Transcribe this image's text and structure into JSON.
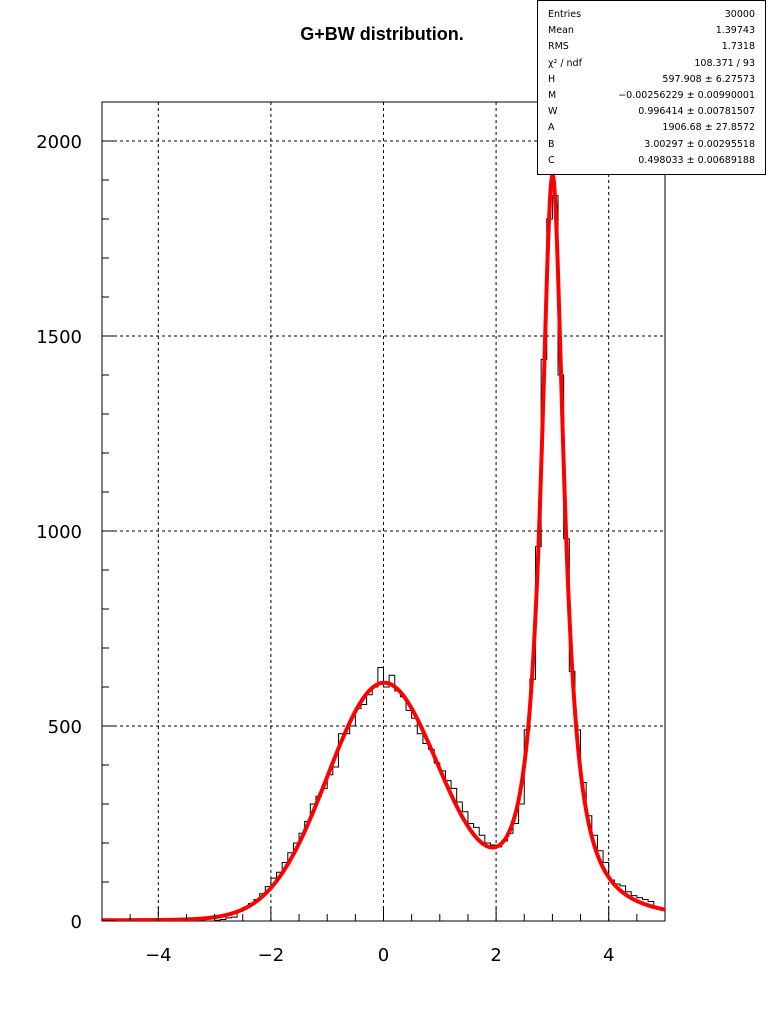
{
  "title": "G+BW distribution.",
  "stats": [
    {
      "key": "Entries",
      "value": "30000"
    },
    {
      "key": "Mean",
      "value": "1.39743"
    },
    {
      "key": "RMS",
      "value": "1.7318"
    },
    {
      "key": "χ² / ndf",
      "value": "108.371 / 93"
    },
    {
      "key": "H",
      "value": "597.908 ± 6.27573"
    },
    {
      "key": "M",
      "value": "−0.00256229 ± 0.00990001"
    },
    {
      "key": "W",
      "value": "0.996414 ± 0.00781507"
    },
    {
      "key": "A",
      "value": "1906.68 ± 27.8572"
    },
    {
      "key": "B",
      "value": "3.00297 ± 0.00295518"
    },
    {
      "key": "C",
      "value": "0.498033 ± 0.00689188"
    }
  ],
  "chart_data": {
    "type": "histogram",
    "xlim": [
      -5,
      5
    ],
    "ylim": [
      0,
      2100
    ],
    "xticks": [
      -4,
      -2,
      0,
      2,
      4
    ],
    "xtick_labels": [
      "−4",
      "−2",
      "0",
      "2",
      "4"
    ],
    "yticks": [
      0,
      500,
      1000,
      1500,
      2000
    ],
    "ytick_labels": [
      "0",
      "500",
      "1000",
      "1500",
      "2000"
    ],
    "grid": true,
    "bin_width": 0.1,
    "histogram_color": "#000000",
    "fit_color": "#ff0000",
    "fit_function": "H*exp(-0.5*((x-M)/W)^2) + A*(C/2)^2/((x-B)^2+(C/2)^2)",
    "fit_params": {
      "H": 597.908,
      "M": -0.00256229,
      "W": 0.996414,
      "A": 1906.68,
      "B": 3.00297,
      "C": 0.498033
    },
    "bins": [
      {
        "x0": -3.0,
        "y": 2
      },
      {
        "x0": -2.9,
        "y": 4
      },
      {
        "x0": -2.8,
        "y": 8
      },
      {
        "x0": -2.7,
        "y": 10
      },
      {
        "x0": -2.6,
        "y": 25
      },
      {
        "x0": -2.5,
        "y": 35
      },
      {
        "x0": -2.4,
        "y": 45
      },
      {
        "x0": -2.3,
        "y": 55
      },
      {
        "x0": -2.2,
        "y": 70
      },
      {
        "x0": -2.1,
        "y": 88
      },
      {
        "x0": -2.0,
        "y": 110
      },
      {
        "x0": -1.9,
        "y": 125
      },
      {
        "x0": -1.8,
        "y": 150
      },
      {
        "x0": -1.7,
        "y": 175
      },
      {
        "x0": -1.6,
        "y": 200
      },
      {
        "x0": -1.5,
        "y": 225
      },
      {
        "x0": -1.4,
        "y": 255
      },
      {
        "x0": -1.3,
        "y": 300
      },
      {
        "x0": -1.2,
        "y": 320
      },
      {
        "x0": -1.1,
        "y": 340
      },
      {
        "x0": -1.0,
        "y": 375
      },
      {
        "x0": -0.9,
        "y": 395
      },
      {
        "x0": -0.8,
        "y": 480
      },
      {
        "x0": -0.7,
        "y": 480
      },
      {
        "x0": -0.6,
        "y": 500
      },
      {
        "x0": -0.5,
        "y": 545
      },
      {
        "x0": -0.4,
        "y": 555
      },
      {
        "x0": -0.3,
        "y": 580
      },
      {
        "x0": -0.2,
        "y": 600
      },
      {
        "x0": -0.1,
        "y": 650
      },
      {
        "x0": 0.0,
        "y": 600
      },
      {
        "x0": 0.1,
        "y": 630
      },
      {
        "x0": 0.2,
        "y": 590
      },
      {
        "x0": 0.3,
        "y": 575
      },
      {
        "x0": 0.4,
        "y": 540
      },
      {
        "x0": 0.5,
        "y": 520
      },
      {
        "x0": 0.6,
        "y": 480
      },
      {
        "x0": 0.7,
        "y": 455
      },
      {
        "x0": 0.8,
        "y": 440
      },
      {
        "x0": 0.9,
        "y": 405
      },
      {
        "x0": 1.0,
        "y": 385
      },
      {
        "x0": 1.1,
        "y": 360
      },
      {
        "x0": 1.2,
        "y": 340
      },
      {
        "x0": 1.3,
        "y": 305
      },
      {
        "x0": 1.4,
        "y": 280
      },
      {
        "x0": 1.5,
        "y": 250
      },
      {
        "x0": 1.6,
        "y": 240
      },
      {
        "x0": 1.7,
        "y": 220
      },
      {
        "x0": 1.8,
        "y": 200
      },
      {
        "x0": 1.9,
        "y": 195
      },
      {
        "x0": 2.0,
        "y": 190
      },
      {
        "x0": 2.1,
        "y": 205
      },
      {
        "x0": 2.2,
        "y": 225
      },
      {
        "x0": 2.3,
        "y": 250
      },
      {
        "x0": 2.4,
        "y": 300
      },
      {
        "x0": 2.5,
        "y": 490
      },
      {
        "x0": 2.6,
        "y": 620
      },
      {
        "x0": 2.7,
        "y": 960
      },
      {
        "x0": 2.8,
        "y": 1440
      },
      {
        "x0": 2.9,
        "y": 1800
      },
      {
        "x0": 3.0,
        "y": 1860
      },
      {
        "x0": 3.1,
        "y": 1400
      },
      {
        "x0": 3.2,
        "y": 980
      },
      {
        "x0": 3.3,
        "y": 640
      },
      {
        "x0": 3.4,
        "y": 490
      },
      {
        "x0": 3.5,
        "y": 355
      },
      {
        "x0": 3.6,
        "y": 270
      },
      {
        "x0": 3.7,
        "y": 220
      },
      {
        "x0": 3.8,
        "y": 180
      },
      {
        "x0": 3.9,
        "y": 150
      },
      {
        "x0": 4.0,
        "y": 105
      },
      {
        "x0": 4.1,
        "y": 95
      },
      {
        "x0": 4.2,
        "y": 90
      },
      {
        "x0": 4.3,
        "y": 75
      },
      {
        "x0": 4.4,
        "y": 65
      },
      {
        "x0": 4.5,
        "y": 60
      },
      {
        "x0": 4.6,
        "y": 55
      },
      {
        "x0": 4.7,
        "y": 50
      },
      {
        "x0": 4.8,
        "y": 35
      },
      {
        "x0": 4.9,
        "y": 30
      }
    ]
  }
}
